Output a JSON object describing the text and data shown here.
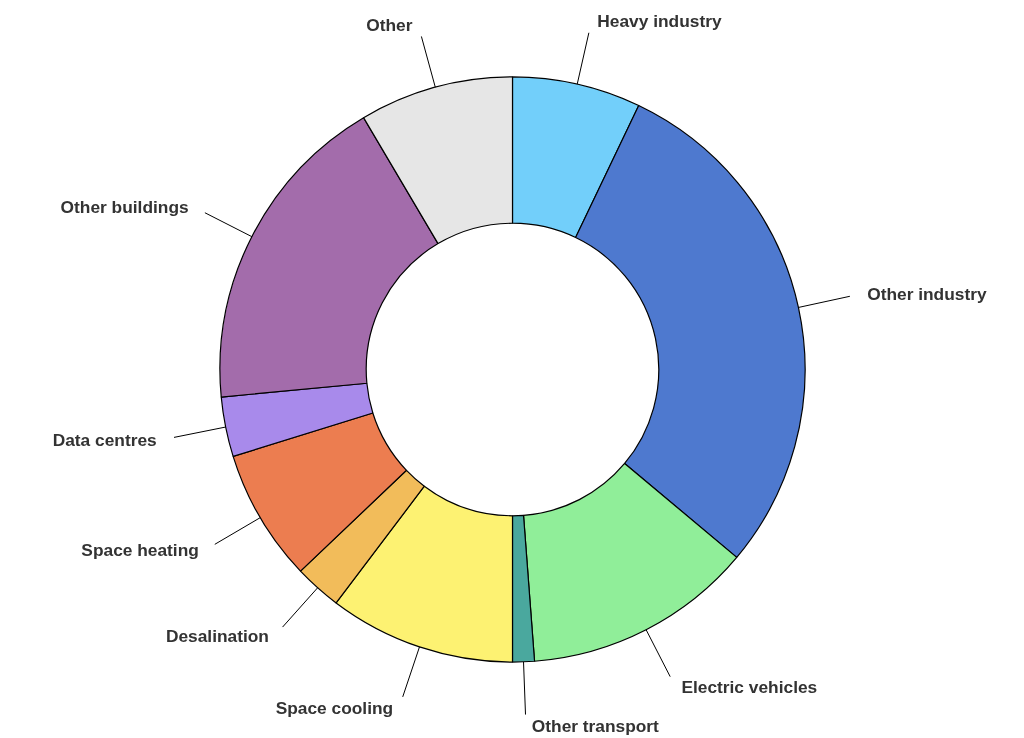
{
  "chart_data": {
    "type": "donut",
    "categories": [
      "Heavy industry",
      "Other industry",
      "Electric vehicles",
      "Other transport",
      "Space cooling",
      "Desalination",
      "Space heating",
      "Data centres",
      "Other buildings",
      "Other"
    ],
    "values": [
      7.1,
      29.0,
      12.7,
      1.2,
      10.3,
      2.6,
      7.3,
      3.3,
      18.0,
      8.5
    ],
    "colors": [
      "#72cffa",
      "#4e79cf",
      "#90ee99",
      "#4aa89e",
      "#fdf272",
      "#f2bc5a",
      "#ec7d50",
      "#a88aeb",
      "#a36cab",
      "#e6e6e6"
    ]
  }
}
